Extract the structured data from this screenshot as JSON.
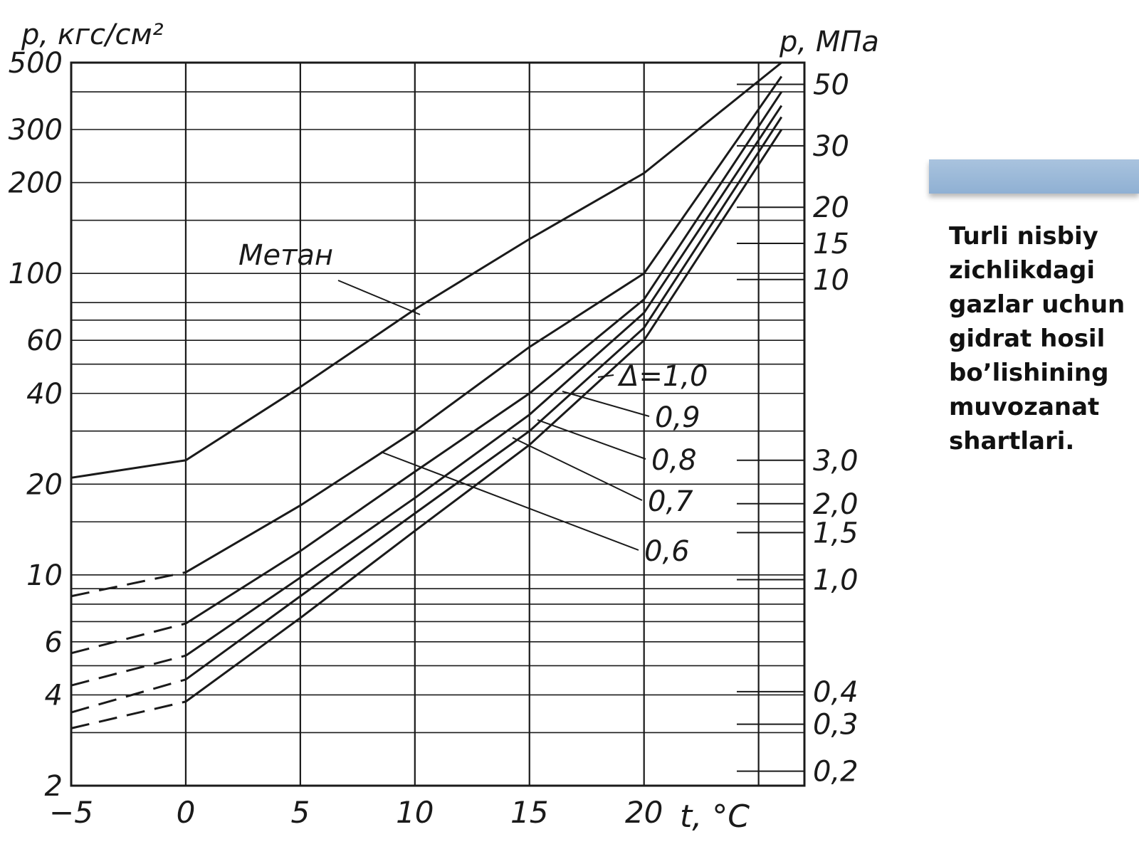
{
  "caption": "Turli nisbiy zichlikdagi gazlar uchun gidrat hosil bo’lishining muvozanat shartlari.",
  "colors": {
    "ink": "#1a1a1a",
    "accent": "#9bb8d9",
    "background": "#ffffff"
  },
  "chart_data": {
    "type": "line",
    "title": "",
    "ylabel": "p, кгс/см²",
    "y2label": "p, МПа",
    "xlabel": "t, °C",
    "xlim": [
      -5,
      27
    ],
    "ylim": [
      2,
      500
    ],
    "yscale": "log",
    "grid": true,
    "x_ticks": [
      -5,
      0,
      5,
      10,
      15,
      20
    ],
    "y_ticks": [
      2,
      4,
      6,
      10,
      20,
      40,
      60,
      100,
      200,
      300,
      500
    ],
    "y_tick_labels": [
      "2",
      "4",
      "6",
      "10",
      "20",
      "40",
      "60",
      "100",
      "200",
      "300",
      "500"
    ],
    "y2_ticks": [
      "50",
      "30",
      "20",
      "15",
      "10",
      "3,0",
      "2,0",
      "1,5",
      "1,0",
      "0,4",
      "0,3",
      "0,2"
    ],
    "series": [
      {
        "name": "Метан",
        "x": [
          -5,
          0,
          5,
          10,
          15,
          20,
          26
        ],
        "y": [
          21,
          24,
          42,
          76,
          130,
          215,
          500
        ]
      },
      {
        "name": "Δ=1,0",
        "dashed_until": 0,
        "x": [
          -5,
          0,
          5,
          10,
          15,
          20,
          26
        ],
        "y": [
          8.5,
          10.2,
          17,
          30,
          57,
          100,
          450
        ]
      },
      {
        "name": "0,9",
        "dashed_until": 0,
        "x": [
          -5,
          0,
          5,
          10,
          15,
          20,
          26
        ],
        "y": [
          5.5,
          6.9,
          12,
          22,
          40,
          82,
          400
        ]
      },
      {
        "name": "0,8",
        "dashed_until": 0,
        "x": [
          -5,
          0,
          5,
          10,
          15,
          20,
          26
        ],
        "y": [
          4.3,
          5.4,
          9.8,
          18,
          34,
          74,
          360
        ]
      },
      {
        "name": "0,7",
        "dashed_until": 0,
        "x": [
          -5,
          0,
          5,
          10,
          15,
          20,
          26
        ],
        "y": [
          3.5,
          4.5,
          8.5,
          16,
          30,
          66,
          330
        ]
      },
      {
        "name": "0,6",
        "dashed_until": 0,
        "x": [
          -5,
          0,
          5,
          10,
          15,
          20,
          26
        ],
        "y": [
          3.1,
          3.8,
          7.2,
          14,
          27,
          60,
          300
        ]
      }
    ]
  }
}
